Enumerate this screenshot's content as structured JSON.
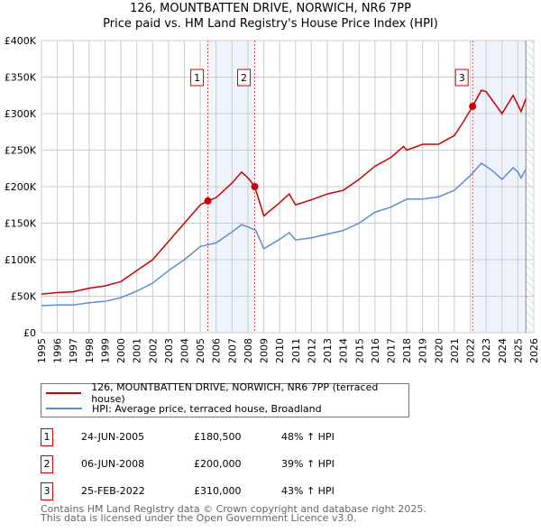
{
  "chart_data": {
    "type": "line",
    "title": "126, MOUNTBATTEN DRIVE, NORWICH, NR6 7PP",
    "subtitle": "Price paid vs. HM Land Registry's House Price Index (HPI)",
    "xlim": [
      1995,
      2026
    ],
    "ylim": [
      0,
      400000
    ],
    "x_ticks": [
      "1995",
      "1996",
      "1997",
      "1998",
      "1999",
      "2000",
      "2001",
      "2002",
      "2003",
      "2004",
      "2005",
      "2006",
      "2007",
      "2008",
      "2009",
      "2010",
      "2011",
      "2012",
      "2013",
      "2014",
      "2015",
      "2016",
      "2017",
      "2018",
      "2019",
      "2020",
      "2021",
      "2022",
      "2023",
      "2024",
      "2025",
      "2026"
    ],
    "y_ticks": [
      {
        "v": 0,
        "label": "£0"
      },
      {
        "v": 50000,
        "label": "£50K"
      },
      {
        "v": 100000,
        "label": "£100K"
      },
      {
        "v": 150000,
        "label": "£150K"
      },
      {
        "v": 200000,
        "label": "£200K"
      },
      {
        "v": 250000,
        "label": "£250K"
      },
      {
        "v": 300000,
        "label": "£300K"
      },
      {
        "v": 350000,
        "label": "£350K"
      },
      {
        "v": 400000,
        "label": "£400K"
      }
    ],
    "grid": true,
    "shaded_ranges": [
      [
        2005.48,
        2008.43
      ],
      [
        2022.15,
        2025.5
      ]
    ],
    "future_hatch_from": 2025.5,
    "series": [
      {
        "name": "126, MOUNTBATTEN DRIVE, NORWICH, NR6 7PP (terraced house)",
        "color": "#cc0000",
        "x": [
          1995,
          1996,
          1997,
          1998,
          1999,
          2000,
          2001,
          2002,
          2003,
          2004,
          2005,
          2005.48,
          2006,
          2007,
          2007.6,
          2008,
          2008.43,
          2009,
          2010,
          2010.6,
          2011,
          2012,
          2013,
          2014,
          2015,
          2016,
          2017,
          2017.8,
          2018,
          2019,
          2020,
          2021,
          2021.6,
          2022.15,
          2022.7,
          2023,
          2023.5,
          2024,
          2024.7,
          2025.2,
          2025.5
        ],
        "y": [
          53000,
          55000,
          56000,
          61000,
          64000,
          70000,
          85000,
          100000,
          125000,
          150000,
          175000,
          180500,
          185000,
          205000,
          220000,
          212000,
          200000,
          160000,
          178000,
          190000,
          175000,
          182000,
          190000,
          195000,
          210000,
          228000,
          240000,
          255000,
          250000,
          258000,
          258000,
          270000,
          290000,
          310000,
          332000,
          330000,
          315000,
          300000,
          325000,
          303000,
          320000
        ]
      },
      {
        "name": "HPI: Average price, terraced house, Broadland",
        "color": "#5b8fd0",
        "x": [
          1995,
          1996,
          1997,
          1998,
          1999,
          2000,
          2001,
          2002,
          2003,
          2004,
          2005,
          2006,
          2007,
          2007.6,
          2008,
          2008.5,
          2009,
          2010,
          2010.6,
          2011,
          2012,
          2013,
          2014,
          2015,
          2016,
          2017,
          2018,
          2019,
          2020,
          2021,
          2021.5,
          2022,
          2022.7,
          2023,
          2023.5,
          2024,
          2024.7,
          2025,
          2025.2,
          2025.5
        ],
        "y": [
          37000,
          38000,
          38000,
          41000,
          43000,
          48000,
          57000,
          68000,
          85000,
          100000,
          118000,
          123000,
          138000,
          148000,
          145000,
          140000,
          115000,
          128000,
          137000,
          127000,
          130000,
          135000,
          140000,
          150000,
          165000,
          172000,
          183000,
          183000,
          186000,
          195000,
          205000,
          215000,
          232000,
          228000,
          220000,
          210000,
          226000,
          220000,
          212000,
          224000
        ]
      }
    ],
    "sales": [
      {
        "id": "1",
        "x": 2005.48,
        "y": 180500,
        "date": "24-JUN-2005",
        "price": "£180,500",
        "hpi": "48% ↑ HPI"
      },
      {
        "id": "2",
        "x": 2008.43,
        "y": 200000,
        "date": "06-JUN-2008",
        "price": "£200,000",
        "hpi": "39% ↑ HPI"
      },
      {
        "id": "3",
        "x": 2022.15,
        "y": 310000,
        "date": "25-FEB-2022",
        "price": "£310,000",
        "hpi": "43% ↑ HPI"
      }
    ]
  },
  "footer": {
    "line1": "Contains HM Land Registry data © Crown copyright and database right 2025.",
    "line2": "This data is licensed under the Open Government Licence v3.0."
  }
}
